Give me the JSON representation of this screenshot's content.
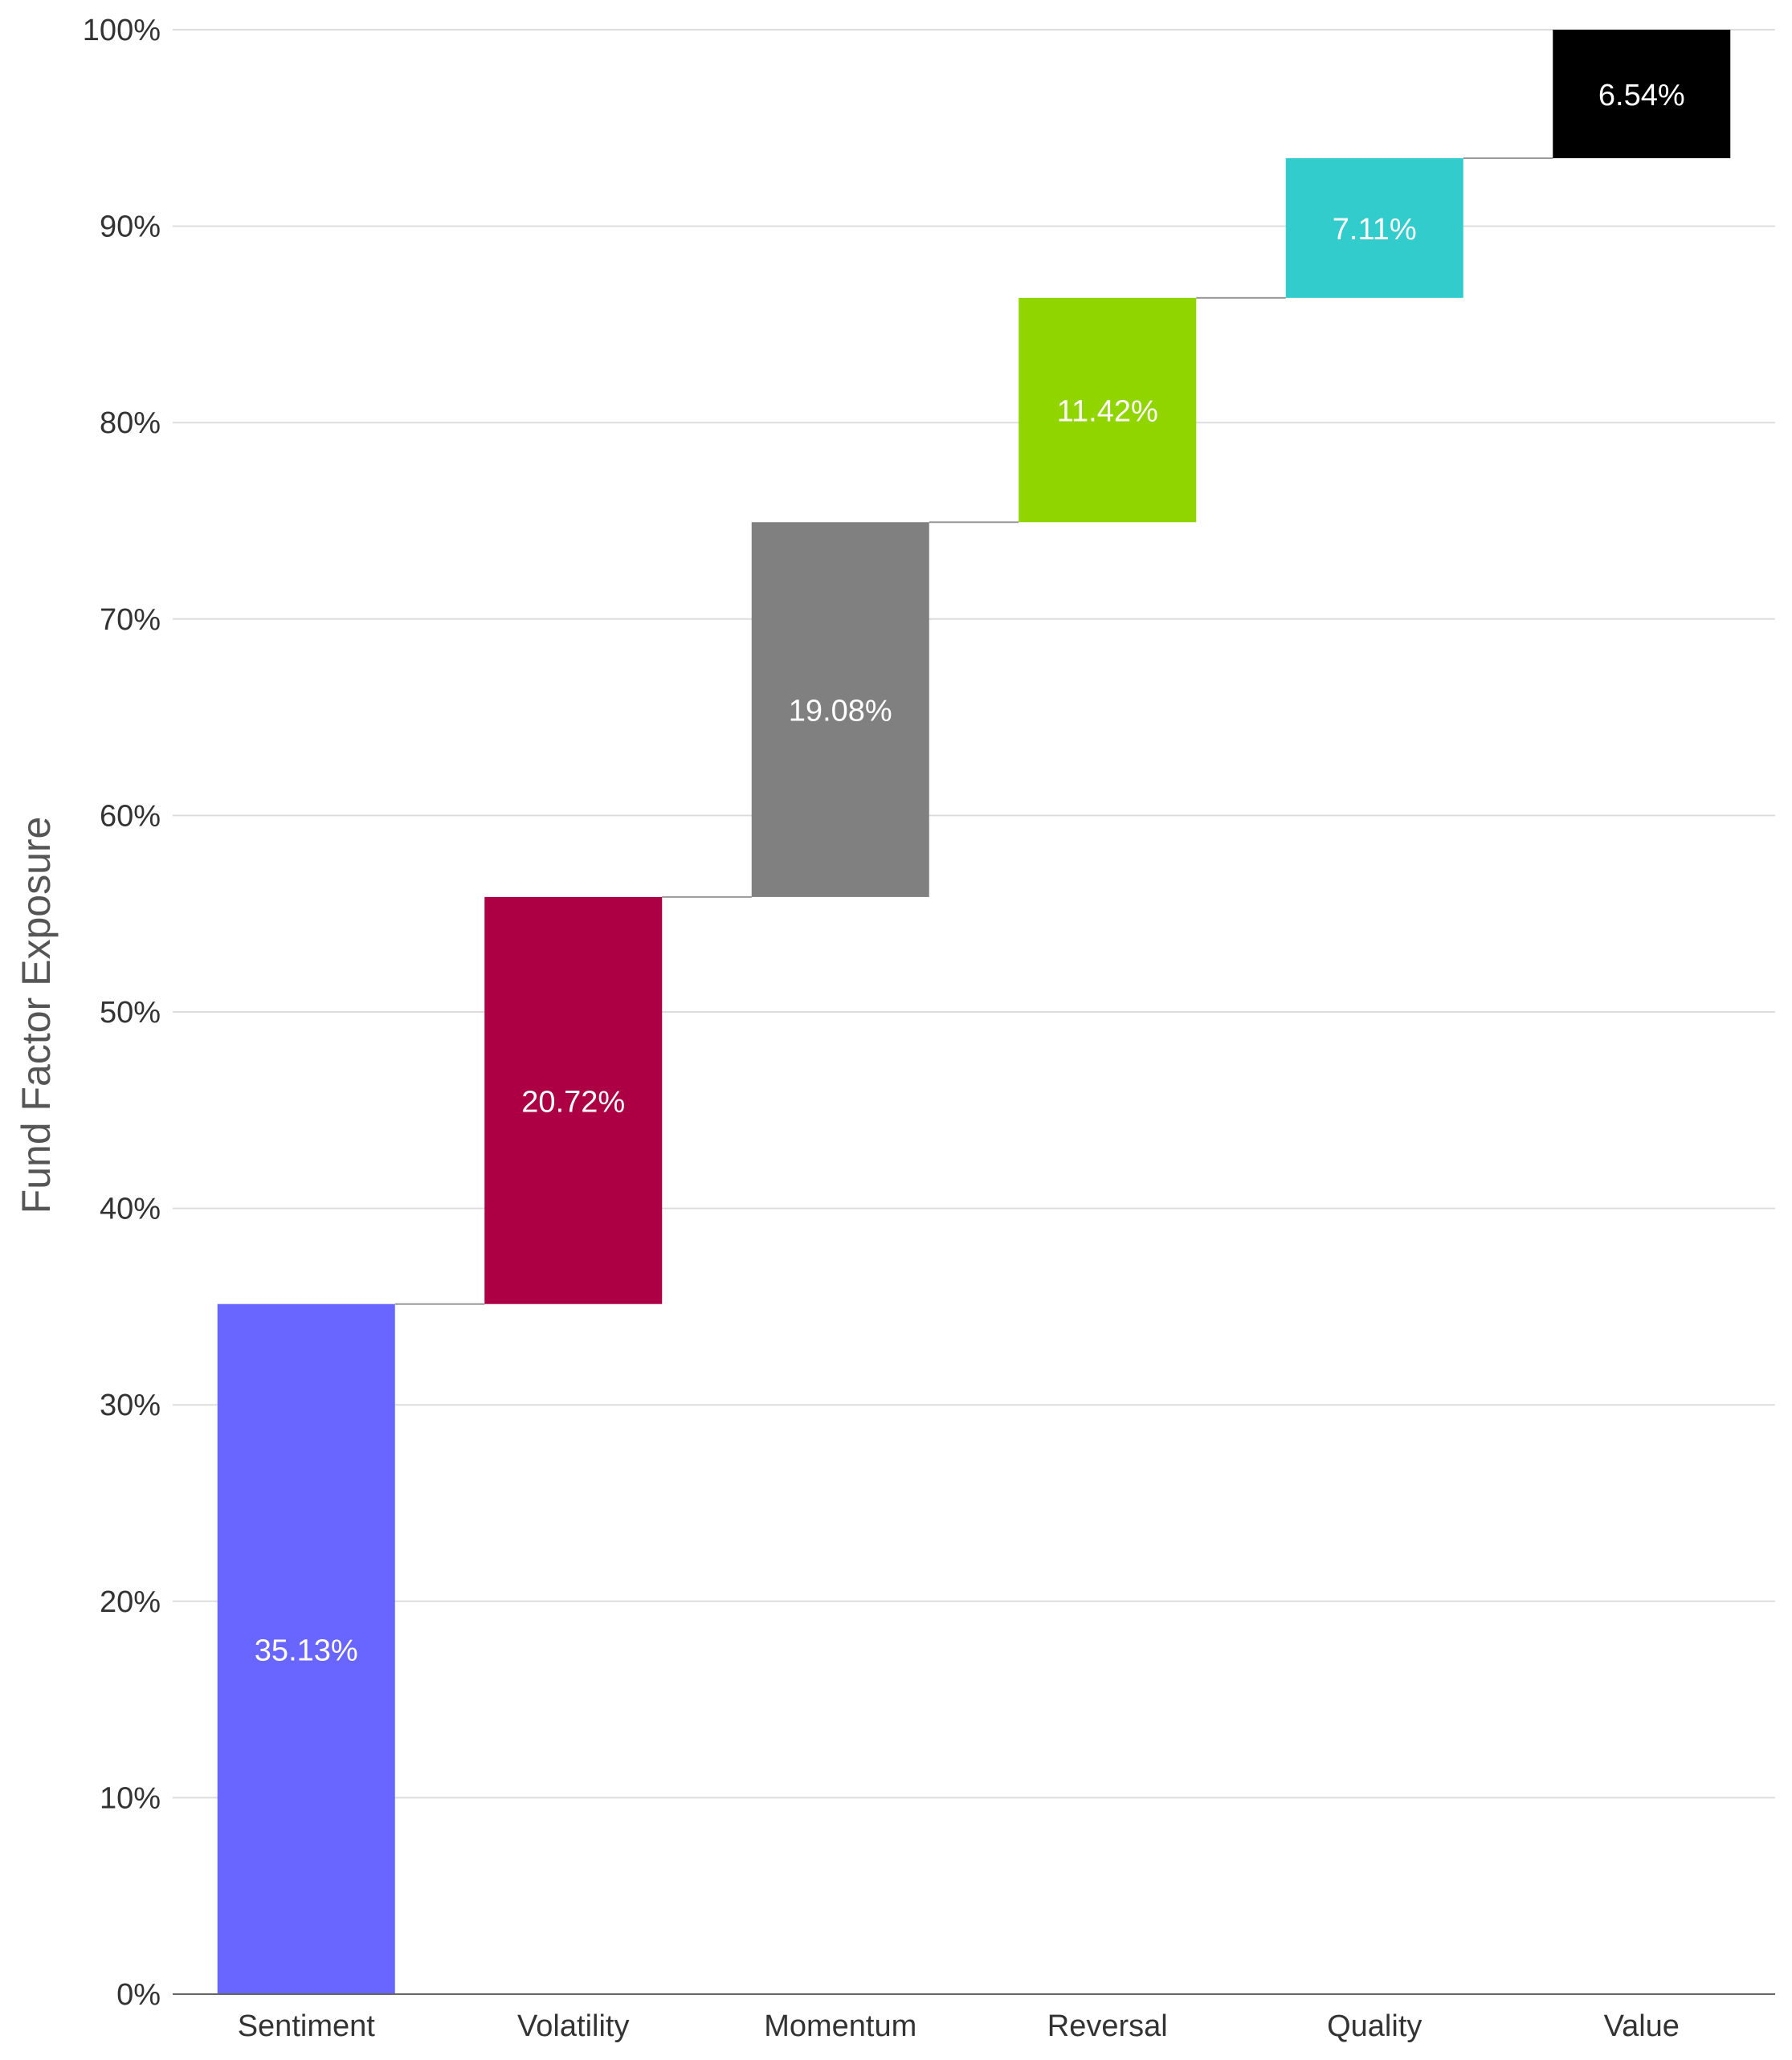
{
  "chart_data": {
    "type": "bar",
    "subtype": "waterfall",
    "title": "",
    "xlabel": "",
    "ylabel": "Fund Factor Exposure",
    "ylim": [
      0,
      100
    ],
    "y_unit": "%",
    "yticks": [
      "0%",
      "10%",
      "20%",
      "30%",
      "40%",
      "50%",
      "60%",
      "70%",
      "80%",
      "90%",
      "100%"
    ],
    "grid": true,
    "legend": "none",
    "categories": [
      "Sentiment",
      "Volatility",
      "Momentum",
      "Reversal",
      "Quality",
      "Value"
    ],
    "values": [
      35.13,
      20.72,
      19.08,
      11.42,
      7.11,
      6.54
    ],
    "value_labels": [
      "35.13%",
      "20.72%",
      "19.08%",
      "11.42%",
      "7.11%",
      "6.54%"
    ],
    "colors": [
      "#6966FF",
      "#AD0044",
      "#808080",
      "#90D400",
      "#33CCCC",
      "#000000"
    ],
    "connector_color": "#999999",
    "grid_color": "#dddddd"
  }
}
